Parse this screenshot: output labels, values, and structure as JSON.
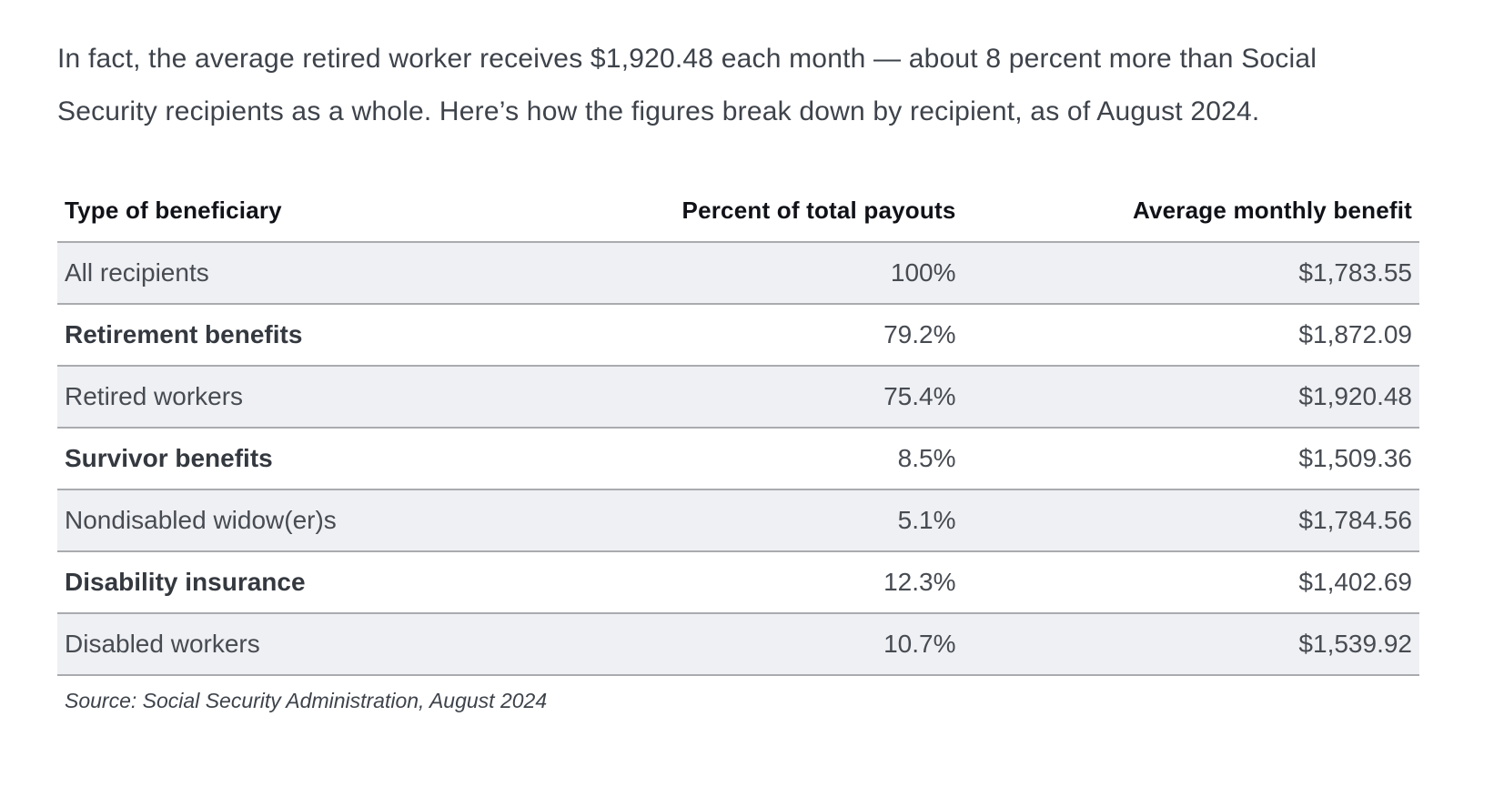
{
  "intro": {
    "text": "In fact, the average retired worker receives $1,920.48 each month — about 8 percent more than Social Security recipients as a whole. Here’s how the figures break down by recipient, as of August 2024."
  },
  "table": {
    "columns": [
      {
        "label": "Type of beneficiary"
      },
      {
        "label": "Percent of total payouts"
      },
      {
        "label": "Average monthly benefit"
      }
    ],
    "rows": [
      {
        "type": "All recipients",
        "percent": "100%",
        "amount": "$1,783.55",
        "bold": false,
        "shaded": true
      },
      {
        "type": "Retirement benefits",
        "percent": "79.2%",
        "amount": "$1,872.09",
        "bold": true,
        "shaded": false
      },
      {
        "type": "Retired workers",
        "percent": "75.4%",
        "amount": "$1,920.48",
        "bold": false,
        "shaded": true
      },
      {
        "type": "Survivor benefits",
        "percent": "8.5%",
        "amount": "$1,509.36",
        "bold": true,
        "shaded": false
      },
      {
        "type": "Nondisabled widow(er)s",
        "percent": "5.1%",
        "amount": "$1,784.56",
        "bold": false,
        "shaded": true
      },
      {
        "type": "Disability insurance",
        "percent": "12.3%",
        "amount": "$1,402.69",
        "bold": true,
        "shaded": false
      },
      {
        "type": "Disabled workers",
        "percent": "10.7%",
        "amount": "$1,539.92",
        "bold": false,
        "shaded": true
      }
    ]
  },
  "source": {
    "text": "Source: Social Security Administration, August 2024"
  },
  "colors": {
    "row_shaded_bg": "#EFF0F3",
    "row_border": "#A9ABAF",
    "heading_text": "#101218",
    "body_text": "#3E434B"
  },
  "chart_data": {
    "type": "table",
    "columns": [
      "Type of beneficiary",
      "Percent of total payouts",
      "Average monthly benefit"
    ],
    "rows": [
      [
        "All recipients",
        "100%",
        "$1,783.55"
      ],
      [
        "Retirement benefits",
        "79.2%",
        "$1,872.09"
      ],
      [
        "Retired workers",
        "75.4%",
        "$1,920.48"
      ],
      [
        "Survivor benefits",
        "8.5%",
        "$1,509.36"
      ],
      [
        "Nondisabled widow(er)s",
        "5.1%",
        "$1,784.56"
      ],
      [
        "Disability insurance",
        "12.3%",
        "$1,402.69"
      ],
      [
        "Disabled workers",
        "10.7%",
        "$1,539.92"
      ]
    ]
  }
}
